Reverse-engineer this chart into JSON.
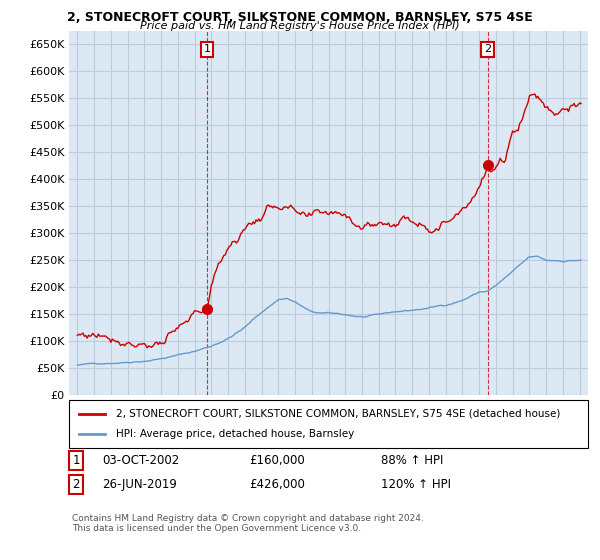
{
  "title": "2, STONECROFT COURT, SILKSTONE COMMON, BARNSLEY, S75 4SE",
  "subtitle": "Price paid vs. HM Land Registry's House Price Index (HPI)",
  "legend_line1": "2, STONECROFT COURT, SILKSTONE COMMON, BARNSLEY, S75 4SE (detached house)",
  "legend_line2": "HPI: Average price, detached house, Barnsley",
  "annotation1_label": "1",
  "annotation1_date": "03-OCT-2002",
  "annotation1_price": "£160,000",
  "annotation1_hpi": "88% ↑ HPI",
  "annotation2_label": "2",
  "annotation2_date": "26-JUN-2019",
  "annotation2_price": "£426,000",
  "annotation2_hpi": "120% ↑ HPI",
  "footer": "Contains HM Land Registry data © Crown copyright and database right 2024.\nThis data is licensed under the Open Government Licence v3.0.",
  "sale1_x": 2002.75,
  "sale1_y": 160000,
  "sale2_x": 2019.5,
  "sale2_y": 426000,
  "red_color": "#cc0000",
  "blue_color": "#6699cc",
  "bg_color": "#dce9f5",
  "ylim": [
    0,
    675000
  ],
  "xlim": [
    1994.5,
    2025.5
  ],
  "yticks": [
    0,
    50000,
    100000,
    150000,
    200000,
    250000,
    300000,
    350000,
    400000,
    450000,
    500000,
    550000,
    600000,
    650000
  ],
  "ytick_labels": [
    "£0",
    "£50K",
    "£100K",
    "£150K",
    "£200K",
    "£250K",
    "£300K",
    "£350K",
    "£400K",
    "£450K",
    "£500K",
    "£550K",
    "£600K",
    "£650K"
  ],
  "xticks": [
    1995,
    1996,
    1997,
    1998,
    1999,
    2000,
    2001,
    2002,
    2003,
    2004,
    2005,
    2006,
    2007,
    2008,
    2009,
    2010,
    2011,
    2012,
    2013,
    2014,
    2015,
    2016,
    2017,
    2018,
    2019,
    2020,
    2021,
    2022,
    2023,
    2024,
    2025
  ],
  "background_color": "#ffffff",
  "grid_color": "#bbccdd"
}
